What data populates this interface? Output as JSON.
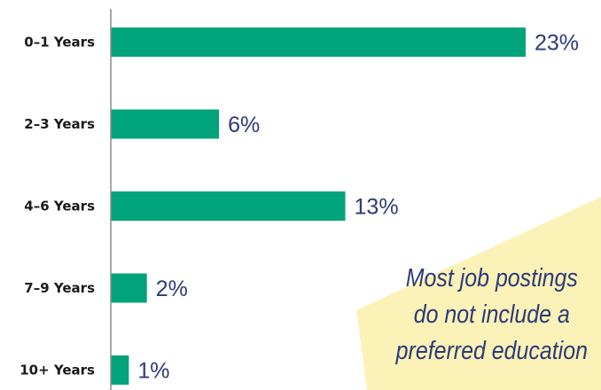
{
  "colors": {
    "bar": "#00a37a",
    "value_text": "#2e3a78",
    "axis": "#8c8c8c",
    "callout_bg": "#fbf2b8",
    "category_text": "#1a1a1a"
  },
  "chart_data": {
    "type": "bar",
    "orientation": "horizontal",
    "title": "",
    "xlabel": "",
    "ylabel": "",
    "categories": [
      "0–1 Years",
      "2–3 Years",
      "4–6 Years",
      "7–9 Years",
      "10+ Years"
    ],
    "values": [
      23,
      6,
      13,
      2,
      1
    ],
    "value_labels": [
      "23%",
      "6%",
      "13%",
      "2%",
      "1%"
    ],
    "xlim": [
      0,
      23
    ],
    "grid": false,
    "legend": "none"
  },
  "callout": {
    "lines": [
      "Most job postings",
      "do not include a",
      "preferred education"
    ]
  }
}
